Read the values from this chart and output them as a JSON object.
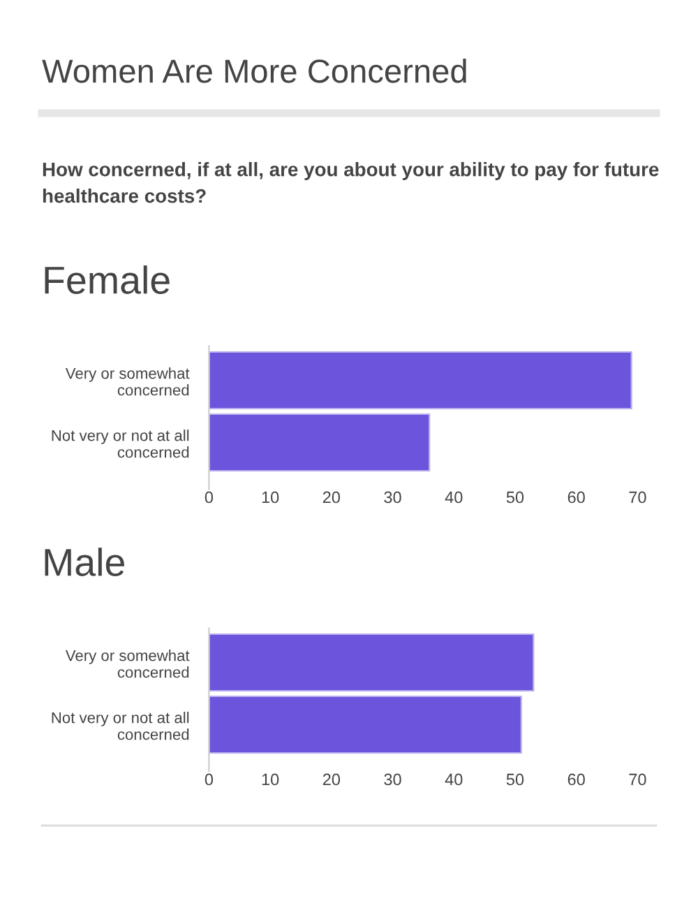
{
  "chart_data": [
    {
      "type": "other",
      "title": "Women Are More Concerned",
      "subtitle": "How concerned, if at all, are you about your ability to pay for future healthcare costs?"
    },
    {
      "type": "bar",
      "orientation": "horizontal",
      "title": "Female",
      "categories": [
        "Very or somewhat\nconcerned",
        "Not very or not at all\nconcerned"
      ],
      "values": [
        69,
        36
      ],
      "color": "#6c54dc",
      "xlim": [
        0,
        70
      ],
      "xticks": [
        0,
        10,
        20,
        30,
        40,
        50,
        60,
        70
      ],
      "grid": false,
      "legend": false
    },
    {
      "type": "bar",
      "orientation": "horizontal",
      "title": "Male",
      "categories": [
        "Very or somewhat\nconcerned",
        "Not very or not at all\nconcerned"
      ],
      "values": [
        53,
        51
      ],
      "color": "#6c54dc",
      "xlim": [
        0,
        70
      ],
      "xticks": [
        0,
        10,
        20,
        30,
        40,
        50,
        60,
        70
      ],
      "grid": false,
      "legend": false
    }
  ]
}
